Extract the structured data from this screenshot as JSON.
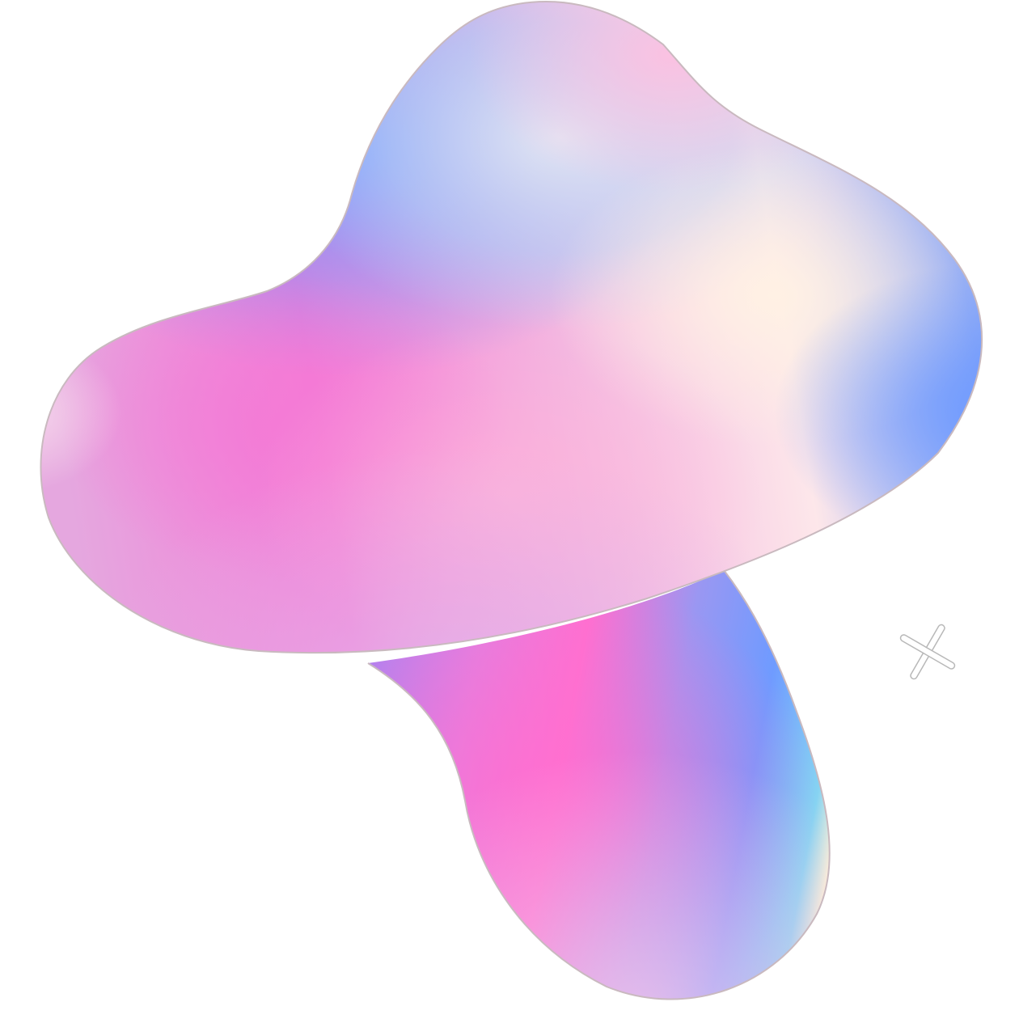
{
  "artwork": {
    "subject": "abstract-gradient-blob",
    "icons": [
      "sparkle-cross-icon"
    ],
    "colors": {
      "background": "#ffffff",
      "outline": "#c9b9bf",
      "pink": "#f47ad6",
      "hot_pink": "#ff6fd0",
      "blue": "#6f9bff",
      "sky_blue": "#86d3f2",
      "lavender": "#c9a3ef",
      "light_pink": "#ffb6da",
      "cream": "#fff1e4",
      "pale_blue": "#bcd3f5",
      "violet": "#a782f2"
    }
  }
}
